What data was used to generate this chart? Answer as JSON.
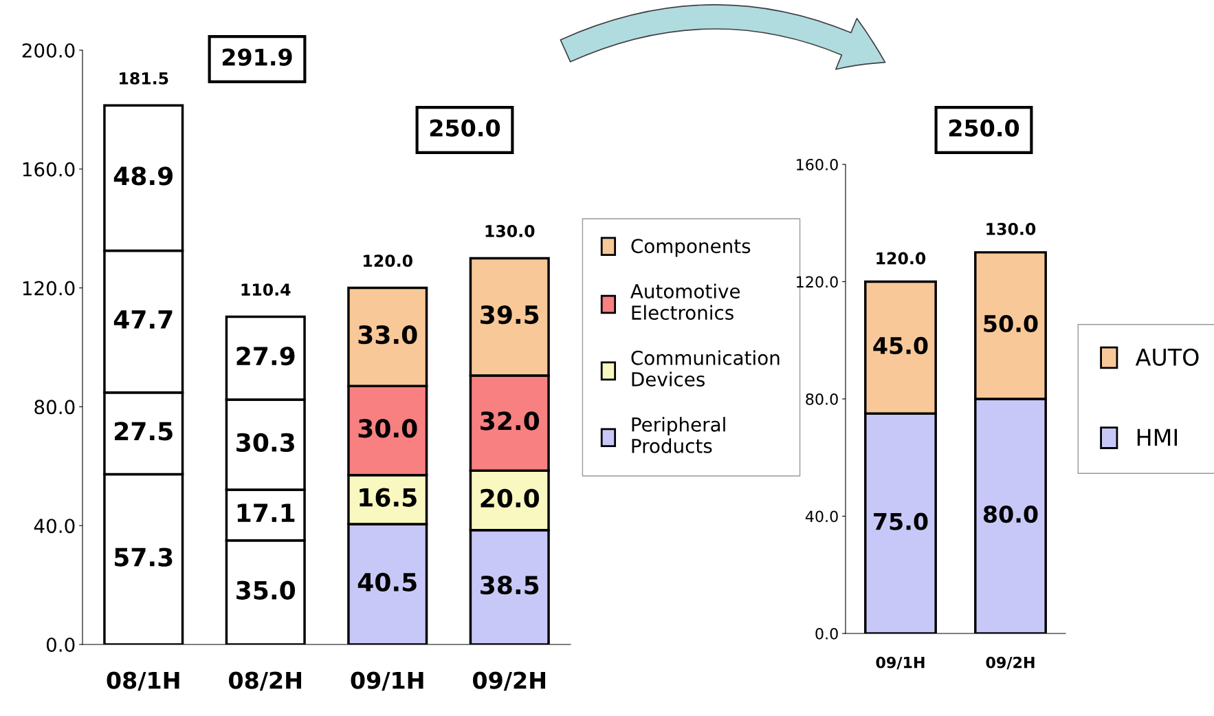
{
  "chart_data": [
    {
      "type": "bar",
      "stacked": true,
      "categories": [
        "08/1H",
        "08/2H",
        "09/1H",
        "09/2H"
      ],
      "ylim": [
        0,
        200
      ],
      "yticks": [
        {
          "value": 0,
          "label": "0.0"
        },
        {
          "value": 40,
          "label": "40.0"
        },
        {
          "value": 80,
          "label": "80.0"
        },
        {
          "value": 120,
          "label": "120.0"
        },
        {
          "value": 160,
          "label": "160.0"
        },
        {
          "value": 200,
          "label": "200.0"
        }
      ],
      "grid": false,
      "legend": "right",
      "series": [
        {
          "name": "Peripheral\nProducts",
          "color": "#c8c8f8",
          "colors": [
            "#ffffff",
            "#ffffff",
            "#c8c8f8",
            "#c8c8f8"
          ],
          "values": [
            57.3,
            35.0,
            40.5,
            38.5
          ],
          "value_labels": [
            "57.3",
            "35.0",
            "40.5",
            "38.5"
          ]
        },
        {
          "name": "Communication\nDevices",
          "color": "#f8f8c0",
          "colors": [
            "#ffffff",
            "#ffffff",
            "#f8f8c0",
            "#f8f8c0"
          ],
          "values": [
            27.5,
            17.1,
            16.5,
            20.0
          ],
          "value_labels": [
            "27.5",
            "17.1",
            "16.5",
            "20.0"
          ]
        },
        {
          "name": "Automotive\nElectronics",
          "color": "#f88080",
          "colors": [
            "#ffffff",
            "#ffffff",
            "#f88080",
            "#f88080"
          ],
          "values": [
            47.7,
            30.3,
            30.0,
            32.0
          ],
          "value_labels": [
            "47.7",
            "30.3",
            "30.0",
            "32.0"
          ]
        },
        {
          "name": "Components",
          "color": "#f8c898",
          "colors": [
            "#ffffff",
            "#ffffff",
            "#f8c898",
            "#f8c898"
          ],
          "values": [
            48.9,
            27.9,
            33.0,
            39.5
          ],
          "value_labels": [
            "48.9",
            "27.9",
            "33.0",
            "39.5"
          ]
        }
      ],
      "totals": [
        "181.5",
        "110.4",
        "120.0",
        "130.0"
      ],
      "annotations": [
        "291.9",
        "250.0"
      ]
    },
    {
      "type": "bar",
      "stacked": true,
      "categories": [
        "09/1H",
        "09/2H"
      ],
      "ylim": [
        0,
        160
      ],
      "yticks": [
        {
          "value": 0,
          "label": "0.0"
        },
        {
          "value": 40,
          "label": "40.0"
        },
        {
          "value": 80,
          "label": "80.0"
        },
        {
          "value": 120,
          "label": "120.0"
        },
        {
          "value": 160,
          "label": "160.0"
        }
      ],
      "grid": false,
      "legend": "right",
      "series": [
        {
          "name": "HMI",
          "color": "#c8c8f8",
          "values": [
            75.0,
            80.0
          ],
          "value_labels": [
            "75.0",
            "80.0"
          ]
        },
        {
          "name": "AUTO",
          "color": "#f8c898",
          "values": [
            45.0,
            50.0
          ],
          "value_labels": [
            "45.0",
            "50.0"
          ]
        }
      ],
      "totals": [
        "120.0",
        "130.0"
      ],
      "annotations": [
        "250.0"
      ]
    }
  ]
}
